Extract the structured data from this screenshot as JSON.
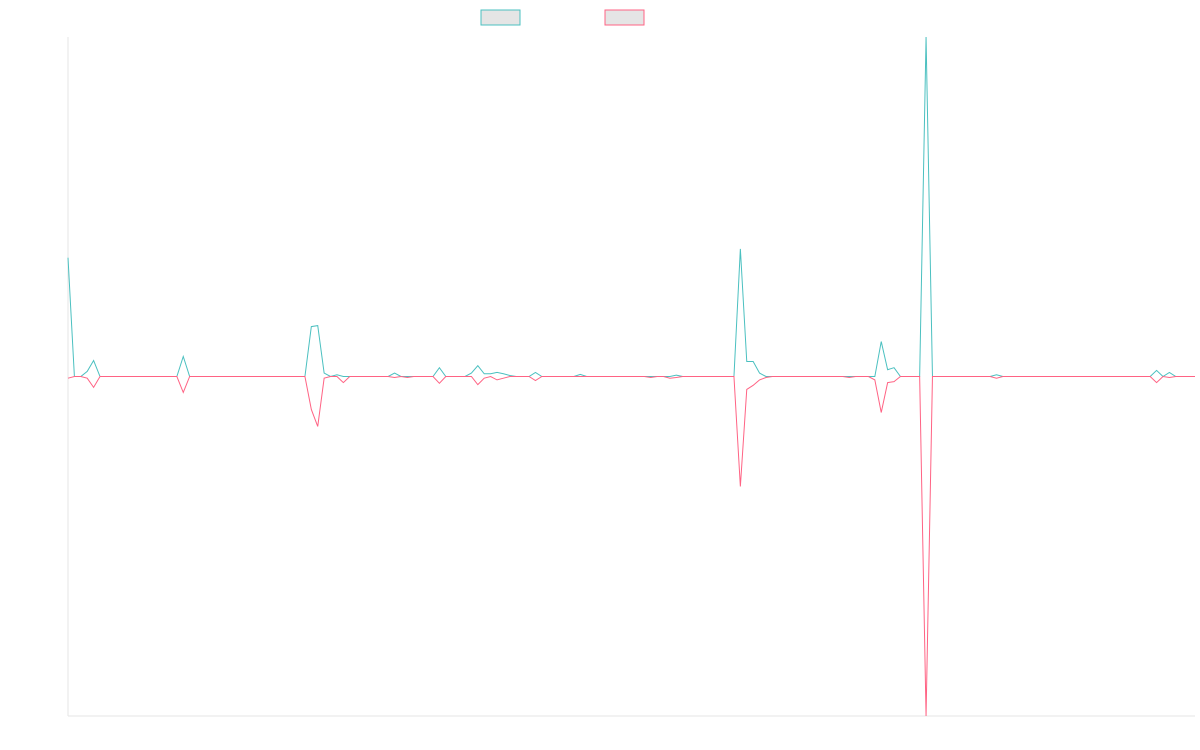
{
  "chart_data": {
    "type": "line",
    "series": [
      {
        "color": "#4bc0c0",
        "values": [
          35,
          0,
          0,
          1.5,
          4.7,
          0,
          0,
          0,
          0,
          0,
          0,
          0,
          0,
          0,
          0,
          0,
          0,
          0,
          5.9,
          0,
          0,
          0,
          0,
          0,
          0,
          0,
          0,
          0,
          0,
          0,
          0,
          0,
          0,
          0,
          0,
          0,
          0,
          0,
          14.7,
          15,
          1,
          0,
          0.5,
          0,
          0,
          0,
          0,
          0,
          0,
          0,
          0,
          1,
          0,
          0,
          0,
          0,
          0,
          0,
          2.6,
          0,
          0,
          0,
          0,
          1,
          3.2,
          0.8,
          0.8,
          1.2,
          0.8,
          0.3,
          0,
          0,
          0,
          1.2,
          0,
          0,
          0,
          0,
          0,
          0,
          0.6,
          0,
          0,
          0,
          0,
          0,
          0,
          0,
          0,
          0,
          0,
          0,
          0,
          0,
          0,
          0.4,
          0,
          0,
          0,
          0,
          0,
          0,
          0,
          0,
          0,
          37.6,
          4.4,
          4.4,
          1,
          0,
          0,
          0,
          0,
          0,
          0,
          0,
          0,
          0,
          0,
          0,
          0,
          0,
          0,
          0,
          0,
          0,
          0,
          10.3,
          2,
          2.6,
          0,
          0,
          0,
          0,
          100,
          0,
          0,
          0,
          0,
          0,
          0,
          0,
          0,
          0,
          0,
          0.5,
          0,
          0,
          0,
          0,
          0,
          0,
          0,
          0,
          0,
          0,
          0,
          0,
          0,
          0,
          0,
          0,
          0,
          0,
          0,
          0,
          0,
          0,
          0,
          0,
          1.8,
          0,
          1.2,
          0,
          0,
          0,
          0
        ]
      },
      {
        "color": "#ff6384",
        "values": [
          -0.5,
          0,
          0,
          -0.5,
          -3.2,
          0,
          0,
          0,
          0,
          0,
          0,
          0,
          0,
          0,
          0,
          0,
          0,
          0,
          -4.7,
          0,
          0,
          0,
          0,
          0,
          0,
          0,
          0,
          0,
          0,
          0,
          0,
          0,
          0,
          0,
          0,
          0,
          0,
          0,
          -9.7,
          -14.7,
          -0.5,
          0,
          0,
          -1.8,
          0,
          0,
          0,
          0,
          0,
          0,
          0,
          -0.3,
          0,
          -0.3,
          0,
          0,
          0,
          0,
          -2,
          0,
          0,
          0,
          0,
          0,
          -2.4,
          -0.5,
          0,
          -1,
          -0.5,
          0,
          0,
          0,
          0,
          -1.2,
          0,
          0,
          0,
          0,
          0,
          0,
          0,
          0,
          0,
          0,
          0,
          0,
          0,
          0,
          0,
          0,
          0,
          -0.3,
          0,
          0,
          -0.5,
          -0.3,
          0,
          0,
          0,
          0,
          0,
          0,
          0,
          0,
          0,
          -32.4,
          -3.8,
          -2.6,
          -1,
          -0.3,
          0,
          0,
          0,
          0,
          0,
          0,
          0,
          0,
          0,
          0,
          0,
          0,
          -0.3,
          0,
          0,
          0,
          -1,
          -10.6,
          -1.8,
          -1.5,
          0,
          0,
          0,
          0,
          -100,
          0,
          0,
          0,
          0,
          0,
          0,
          0,
          0,
          0,
          0,
          -0.5,
          0,
          0,
          0,
          0,
          0,
          0,
          0,
          0,
          0,
          0,
          0,
          0,
          0,
          0,
          0,
          0,
          0,
          0,
          0,
          0,
          0,
          0,
          0,
          0,
          -1.8,
          0,
          -0.3,
          0,
          0,
          0,
          0
        ]
      }
    ],
    "ylim": [
      -100,
      100
    ]
  }
}
